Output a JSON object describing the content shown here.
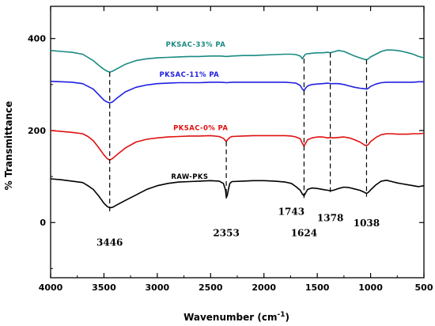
{
  "chart_data": {
    "type": "line",
    "title": "",
    "xlabel": "Wavenumber (cm",
    "xlabel_sup": "-1",
    "xlabel_close": ")",
    "ylabel": "% Transmittance",
    "xlim": [
      4000,
      500
    ],
    "ylim": [
      -120,
      470
    ],
    "x_ticks": [
      4000,
      3500,
      3000,
      2500,
      2000,
      1500,
      1000,
      500
    ],
    "x_tick_labels": [
      "4000",
      "3500",
      "3000",
      "2500",
      "2000",
      "1500",
      "1000",
      "500"
    ],
    "y_ticks": [
      0,
      200,
      400
    ],
    "y_tick_labels": [
      "0",
      "200",
      "400"
    ],
    "grid": false,
    "legend": "none",
    "series": [
      {
        "name": "PKSAC-33% PA",
        "color": "#1a8a82",
        "x": [
          4000,
          3900,
          3800,
          3700,
          3600,
          3550,
          3500,
          3470,
          3446,
          3420,
          3380,
          3300,
          3200,
          3100,
          3000,
          2900,
          2800,
          2700,
          2600,
          2500,
          2400,
          2353,
          2300,
          2200,
          2100,
          2000,
          1900,
          1800,
          1743,
          1700,
          1660,
          1640,
          1624,
          1610,
          1590,
          1550,
          1500,
          1450,
          1400,
          1378,
          1350,
          1300,
          1250,
          1200,
          1150,
          1100,
          1060,
          1038,
          1020,
          1000,
          950,
          900,
          850,
          800,
          750,
          700,
          650,
          600,
          550,
          500
        ],
        "y": [
          374,
          372,
          370,
          366,
          352,
          342,
          333,
          329,
          327,
          329,
          334,
          344,
          352,
          356,
          358,
          359,
          360,
          361,
          361,
          362,
          362,
          361,
          362,
          363,
          363,
          364,
          365,
          366,
          366,
          365,
          362,
          356,
          362,
          366,
          367,
          368,
          369,
          369,
          370,
          369,
          371,
          374,
          372,
          367,
          362,
          358,
          355,
          354,
          356,
          360,
          366,
          372,
          375,
          375,
          374,
          372,
          369,
          366,
          361,
          358
        ]
      },
      {
        "name": "PKSAC-11% PA",
        "color": "#2020e0",
        "x": [
          4000,
          3900,
          3800,
          3700,
          3600,
          3550,
          3500,
          3470,
          3446,
          3420,
          3380,
          3300,
          3200,
          3100,
          3000,
          2900,
          2800,
          2700,
          2600,
          2500,
          2400,
          2353,
          2300,
          2200,
          2100,
          2000,
          1900,
          1800,
          1743,
          1700,
          1660,
          1640,
          1624,
          1610,
          1590,
          1550,
          1500,
          1450,
          1400,
          1378,
          1350,
          1300,
          1250,
          1200,
          1150,
          1100,
          1060,
          1038,
          1020,
          1000,
          950,
          900,
          850,
          800,
          750,
          700,
          650,
          600,
          550,
          500
        ],
        "y": [
          307,
          306,
          305,
          302,
          290,
          278,
          266,
          262,
          260,
          262,
          270,
          284,
          294,
          299,
          302,
          303,
          304,
          304,
          304,
          305,
          305,
          304,
          305,
          305,
          305,
          305,
          305,
          305,
          304,
          303,
          298,
          290,
          287,
          292,
          297,
          300,
          301,
          302,
          303,
          302,
          302,
          302,
          300,
          297,
          294,
          292,
          291,
          290,
          292,
          296,
          301,
          304,
          305,
          305,
          305,
          305,
          305,
          305,
          306,
          306
        ]
      },
      {
        "name": "PKSAC-0% PA",
        "color": "#e01010",
        "x": [
          4000,
          3900,
          3800,
          3700,
          3650,
          3600,
          3550,
          3500,
          3470,
          3446,
          3420,
          3380,
          3300,
          3200,
          3100,
          3000,
          2900,
          2800,
          2700,
          2600,
          2500,
          2420,
          2380,
          2360,
          2353,
          2345,
          2320,
          2300,
          2200,
          2100,
          2000,
          1900,
          1800,
          1743,
          1700,
          1660,
          1640,
          1624,
          1610,
          1590,
          1550,
          1500,
          1450,
          1400,
          1378,
          1350,
          1300,
          1250,
          1200,
          1150,
          1100,
          1060,
          1038,
          1020,
          1000,
          950,
          900,
          850,
          800,
          750,
          700,
          650,
          600,
          550,
          500
        ],
        "y": [
          200,
          198,
          196,
          193,
          187,
          178,
          163,
          147,
          139,
          136,
          139,
          147,
          162,
          175,
          181,
          184,
          186,
          187,
          188,
          188,
          189,
          187,
          183,
          178,
          176,
          179,
          185,
          187,
          188,
          189,
          189,
          189,
          189,
          188,
          186,
          182,
          172,
          166,
          172,
          180,
          184,
          186,
          186,
          184,
          185,
          184,
          185,
          186,
          184,
          180,
          175,
          169,
          167,
          170,
          176,
          185,
          191,
          193,
          193,
          192,
          192,
          192,
          193,
          193,
          194
        ]
      },
      {
        "name": "RAW-PKS",
        "color": "#000000",
        "x": [
          4000,
          3900,
          3800,
          3700,
          3650,
          3600,
          3550,
          3500,
          3470,
          3446,
          3420,
          3380,
          3300,
          3200,
          3100,
          3000,
          2900,
          2800,
          2700,
          2600,
          2500,
          2420,
          2380,
          2360,
          2353,
          2345,
          2330,
          2320,
          2300,
          2200,
          2100,
          2000,
          1900,
          1800,
          1743,
          1700,
          1660,
          1640,
          1624,
          1610,
          1590,
          1550,
          1500,
          1450,
          1400,
          1378,
          1350,
          1300,
          1250,
          1200,
          1150,
          1100,
          1060,
          1038,
          1020,
          1000,
          950,
          900,
          850,
          800,
          750,
          700,
          650,
          600,
          550,
          500
        ],
        "y": [
          95,
          93,
          90,
          87,
          80,
          72,
          58,
          42,
          35,
          32,
          33,
          38,
          48,
          60,
          72,
          80,
          85,
          88,
          89,
          90,
          91,
          90,
          85,
          70,
          55,
          58,
          75,
          85,
          89,
          90,
          91,
          91,
          90,
          88,
          85,
          78,
          70,
          62,
          58,
          64,
          72,
          75,
          74,
          72,
          70,
          69,
          70,
          74,
          77,
          76,
          73,
          70,
          66,
          63,
          66,
          71,
          82,
          90,
          92,
          89,
          86,
          84,
          82,
          80,
          78,
          80
        ]
      }
    ],
    "series_labels": [
      {
        "text": "PKSAC-33% PA",
        "x": 2920,
        "y": 382
      },
      {
        "text": "PKSAC-11% PA",
        "x": 2980,
        "y": 317
      },
      {
        "text": "PKSAC-0% PA",
        "x": 2850,
        "y": 201
      },
      {
        "text": "RAW-PKS",
        "x": 2870,
        "y": 95
      }
    ],
    "peaks": [
      {
        "label": "3446",
        "x": 3446,
        "top": 327,
        "bottom": 24,
        "text_x": 3446,
        "text_y": -50
      },
      {
        "label": "2353",
        "x": 2353,
        "top": 176,
        "bottom": 52,
        "text_x": 2353,
        "text_y": -30
      },
      {
        "label": "1743",
        "x": 1743,
        "top": null,
        "bottom": null,
        "text_x": 1743,
        "text_y": 17
      },
      {
        "label": "1624",
        "x": 1624,
        "top": 356,
        "bottom": 48,
        "text_x": 1624,
        "text_y": -30
      },
      {
        "label": "1378",
        "x": 1378,
        "top": 369,
        "bottom": 62,
        "text_x": 1378,
        "text_y": 3
      },
      {
        "label": "1038",
        "x": 1038,
        "top": 354,
        "bottom": 56,
        "text_x": 1038,
        "text_y": -8
      }
    ]
  }
}
